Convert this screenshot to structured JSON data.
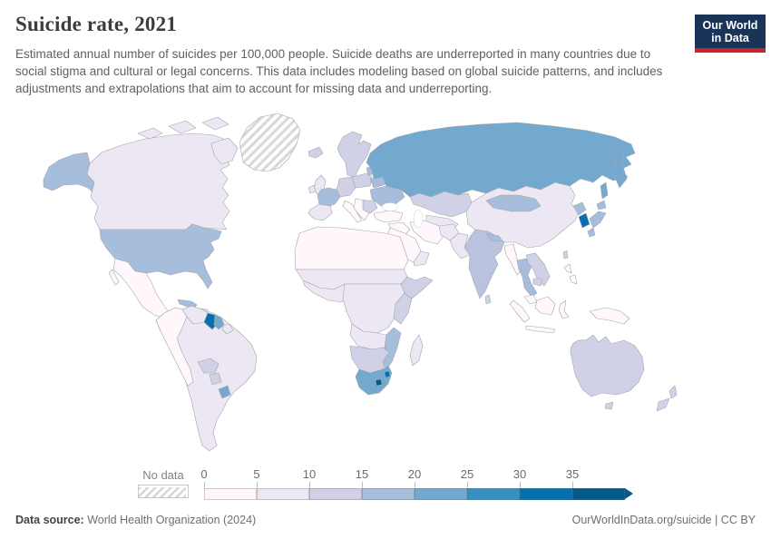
{
  "header": {
    "title": "Suicide rate, 2021",
    "subtitle": "Estimated annual number of suicides per 100,000 people. Suicide deaths are underreported in many countries due to social stigma and cultural or legal concerns. This data includes modeling based on global suicide patterns, and includes adjustments and extrapolations that aim to account for missing data and underreporting."
  },
  "logo": {
    "line1": "Our World",
    "line2": "in Data",
    "bg_color": "#1a3458",
    "accent_color": "#c2272d"
  },
  "legend": {
    "no_data_label": "No data",
    "ticks": [
      "0",
      "5",
      "10",
      "15",
      "20",
      "25",
      "30",
      "35"
    ]
  },
  "footer": {
    "source_label": "Data source:",
    "source_value": " World Health Organization (2024)",
    "license": "OurWorldInData.org/suicide | CC BY"
  },
  "chart_data": {
    "type": "heatmap",
    "variant": "choropleth_world_map",
    "title": "Suicide rate, 2021",
    "unit": "estimated annual suicides per 100,000 people",
    "legend_position": "bottom",
    "color_scale": {
      "bins": [
        {
          "label": "0-5",
          "color": "#fff7fb"
        },
        {
          "label": "5-10",
          "color": "#ece7f2"
        },
        {
          "label": "10-15",
          "color": "#d0d1e6"
        },
        {
          "label": "15-20",
          "color": "#a6bddb"
        },
        {
          "label": "20-25",
          "color": "#74a9cf"
        },
        {
          "label": "25-30",
          "color": "#3690c0"
        },
        {
          "label": "30-35",
          "color": "#0570b0"
        },
        {
          "label": "35+",
          "color": "#045a8d"
        }
      ],
      "no_data": {
        "label": "No data",
        "style": "diagonal-hatch"
      }
    },
    "regions": [
      {
        "name": "United States",
        "bin": "15-20"
      },
      {
        "name": "Canada",
        "bin": "5-10"
      },
      {
        "name": "Alaska (US)",
        "bin": "15-20"
      },
      {
        "name": "Greenland",
        "bin": "No data"
      },
      {
        "name": "Mexico",
        "bin": "0-5"
      },
      {
        "name": "Central America",
        "bin": "0-5"
      },
      {
        "name": "Cuba",
        "bin": "15-20"
      },
      {
        "name": "Colombia",
        "bin": "0-5"
      },
      {
        "name": "Peru",
        "bin": "0-5"
      },
      {
        "name": "Venezuela",
        "bin": "5-10"
      },
      {
        "name": "Guyana",
        "bin": "30-35"
      },
      {
        "name": "Suriname",
        "bin": "20-25"
      },
      {
        "name": "Brazil",
        "bin": "5-10"
      },
      {
        "name": "Bolivia",
        "bin": "10-15"
      },
      {
        "name": "Paraguay",
        "bin": "10-15"
      },
      {
        "name": "Argentina",
        "bin": "5-10"
      },
      {
        "name": "Chile",
        "bin": "5-10"
      },
      {
        "name": "Uruguay",
        "bin": "20-25"
      },
      {
        "name": "United Kingdom",
        "bin": "5-10"
      },
      {
        "name": "Ireland",
        "bin": "5-10"
      },
      {
        "name": "Iceland",
        "bin": "10-15"
      },
      {
        "name": "Norway",
        "bin": "10-15"
      },
      {
        "name": "Sweden",
        "bin": "10-15"
      },
      {
        "name": "Finland",
        "bin": "10-15"
      },
      {
        "name": "France",
        "bin": "15-20"
      },
      {
        "name": "Spain",
        "bin": "5-10"
      },
      {
        "name": "Portugal",
        "bin": "5-10"
      },
      {
        "name": "Germany",
        "bin": "10-15"
      },
      {
        "name": "Poland",
        "bin": "10-15"
      },
      {
        "name": "Italy",
        "bin": "0-5"
      },
      {
        "name": "Greece",
        "bin": "0-5"
      },
      {
        "name": "Baltic states",
        "bin": "15-20"
      },
      {
        "name": "Belarus",
        "bin": "15-20"
      },
      {
        "name": "Ukraine",
        "bin": "15-20"
      },
      {
        "name": "Russia",
        "bin": "20-25"
      },
      {
        "name": "Kazakhstan",
        "bin": "10-15"
      },
      {
        "name": "Turkey",
        "bin": "0-5"
      },
      {
        "name": "Saudi Arabia",
        "bin": "0-5"
      },
      {
        "name": "Iran",
        "bin": "0-5"
      },
      {
        "name": "Afghanistan",
        "bin": "5-10"
      },
      {
        "name": "Pakistan",
        "bin": "5-10"
      },
      {
        "name": "India",
        "bin": "10-15"
      },
      {
        "name": "Nepal",
        "bin": "15-20"
      },
      {
        "name": "Sri Lanka",
        "bin": "10-15"
      },
      {
        "name": "China",
        "bin": "5-10"
      },
      {
        "name": "Mongolia",
        "bin": "15-20"
      },
      {
        "name": "North Korea",
        "bin": "15-20"
      },
      {
        "name": "South Korea",
        "bin": "30-35"
      },
      {
        "name": "Japan",
        "bin": "15-20"
      },
      {
        "name": "Myanmar",
        "bin": "0-5"
      },
      {
        "name": "Thailand",
        "bin": "15-20"
      },
      {
        "name": "Vietnam",
        "bin": "10-15"
      },
      {
        "name": "Cambodia",
        "bin": "10-15"
      },
      {
        "name": "Malaysia",
        "bin": "0-5"
      },
      {
        "name": "Indonesia",
        "bin": "0-5"
      },
      {
        "name": "Philippines",
        "bin": "0-5"
      },
      {
        "name": "Papua New Guinea",
        "bin": "0-5"
      },
      {
        "name": "Australia",
        "bin": "10-15"
      },
      {
        "name": "New Zealand",
        "bin": "10-15"
      },
      {
        "name": "North Africa (Morocco, Algeria, Libya, Egypt)",
        "bin": "0-5"
      },
      {
        "name": "Sahel (Mali, Niger, Chad, Sudan)",
        "bin": "5-10"
      },
      {
        "name": "West Africa coastal",
        "bin": "5-10"
      },
      {
        "name": "Ethiopia / Somalia",
        "bin": "10-15"
      },
      {
        "name": "Kenya / Tanzania",
        "bin": "10-15"
      },
      {
        "name": "DR Congo / Central Africa",
        "bin": "5-10"
      },
      {
        "name": "Angola / Zambia",
        "bin": "5-10"
      },
      {
        "name": "Zimbabwe / Botswana / Namibia",
        "bin": "10-15"
      },
      {
        "name": "Mozambique",
        "bin": "15-20"
      },
      {
        "name": "South Africa",
        "bin": "20-25"
      },
      {
        "name": "Eswatini",
        "bin": "30-35"
      },
      {
        "name": "Lesotho",
        "bin": "35+"
      },
      {
        "name": "Madagascar",
        "bin": "5-10"
      }
    ]
  },
  "map": {
    "ocean_color": "#ffffff",
    "border_color": "#a3a7ad",
    "fills": {
      "alaska": "#a6bddb",
      "canada": "#ece7f2",
      "arctic1": "#ece7f2",
      "arctic2": "#ece7f2",
      "arctic3": "#ece7f2",
      "baffin": "#ece7f2",
      "greenland": "hatch",
      "iceland": "#d0d1e6",
      "usa": "#a6bddb",
      "mexico": "#fff7fb",
      "baja": "#fff7fb",
      "central-america": "#fff7fb",
      "cuba": "#a6bddb",
      "hispaniola": "#ece7f2",
      "south-america": "#ece7f2",
      "andes-nw": "#fff7fb",
      "venezuela": "#ece7f2",
      "guyana": "#0570b0",
      "suriname": "#74a9cf",
      "guiana-fr": "#ece7f2",
      "bolivia": "#d0d1e6",
      "paraguay": "#d0d1e6",
      "uruguay": "#74a9cf",
      "scandinavia": "#d0d1e6",
      "uk": "#ece7f2",
      "ireland": "#ece7f2",
      "iberia": "#ece7f2",
      "france": "#a6bddb",
      "central-europe": "#d0d1e6",
      "italy": "#fff7fb",
      "balkans": "#fff7fb",
      "poland": "#d0d1e6",
      "baltics": "#a6bddb",
      "belarus": "#a6bddb",
      "ukraine": "#a6bddb",
      "romania": "#d0d1e6",
      "russia": "#74a9cf",
      "kamchatka": "#74a9cf",
      "sakhalin": "#74a9cf",
      "kazakhstan": "#d0d1e6",
      "central-asia": "#ece7f2",
      "turkey": "#fff7fb",
      "levant-iraq": "#fff7fb",
      "saudi": "#fff7fb",
      "yemen-oman": "#ece7f2",
      "iran": "#fff7fb",
      "afghanistan": "#ece7f2",
      "pakistan": "#ece7f2",
      "india": "#b9c3de",
      "nepal": "#a6bddb",
      "sri-lanka": "#d0d1e6",
      "china": "#ece7f2",
      "mongolia": "#a6bddb",
      "north-korea": "#a6bddb",
      "south-korea": "#0570b0",
      "japan-hokkaido": "#a6bddb",
      "japan-honshu": "#a6bddb",
      "japan-kyushu": "#a6bddb",
      "taiwan": "#d0d1e6",
      "myanmar": "#fff7fb",
      "thailand": "#a6bddb",
      "indochina": "#d0d1e6",
      "cambodia": "#d0d1e6",
      "malaysia": "#fff7fb",
      "sumatra": "#fff7fb",
      "java": "#fff7fb",
      "borneo": "#fff7fb",
      "sulawesi": "#fff7fb",
      "philippines": "#fff7fb",
      "new-guinea": "#fff7fb",
      "australia": "#d0d1e6",
      "tasmania": "#d0d1e6",
      "nz-north": "#d0d1e6",
      "nz-south": "#d0d1e6",
      "africa-north": "#fff7fb",
      "africa-sahel": "#ece7f2",
      "africa-west": "#ece7f2",
      "africa-horn": "#d0d1e6",
      "africa-central": "#ece7f2",
      "africa-east": "#d0d1e6",
      "angola-zambia": "#ece7f2",
      "southern-africa": "#d0d1e6",
      "mozambique": "#a6bddb",
      "south-africa": "#74a9cf",
      "lesotho": "#045a8d",
      "eswatini": "#0570b0",
      "madagascar": "#ece7f2"
    }
  }
}
